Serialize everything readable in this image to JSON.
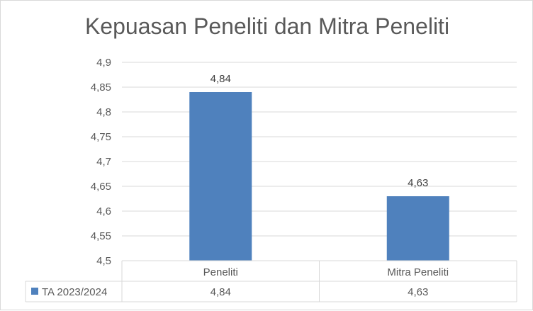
{
  "chart_data": {
    "type": "bar",
    "title": "Kepuasan Peneliti dan Mitra Peneliti",
    "categories": [
      "Peneliti",
      "Mitra Peneliti"
    ],
    "series": [
      {
        "name": "TA 2023/2024",
        "values": [
          4.84,
          4.63
        ],
        "labels": [
          "4,84",
          "4,63"
        ],
        "color": "#4f81bd"
      }
    ],
    "ylim": [
      4.5,
      4.9
    ],
    "yticks": [
      4.5,
      4.55,
      4.6,
      4.65,
      4.7,
      4.75,
      4.8,
      4.85,
      4.9
    ],
    "ytick_labels": [
      "4,5",
      "4,55",
      "4,6",
      "4,65",
      "4,7",
      "4,75",
      "4,8",
      "4,85",
      "4,9"
    ],
    "grid": true,
    "legend": "data-table",
    "data_table": true,
    "xlabel": "",
    "ylabel": ""
  }
}
